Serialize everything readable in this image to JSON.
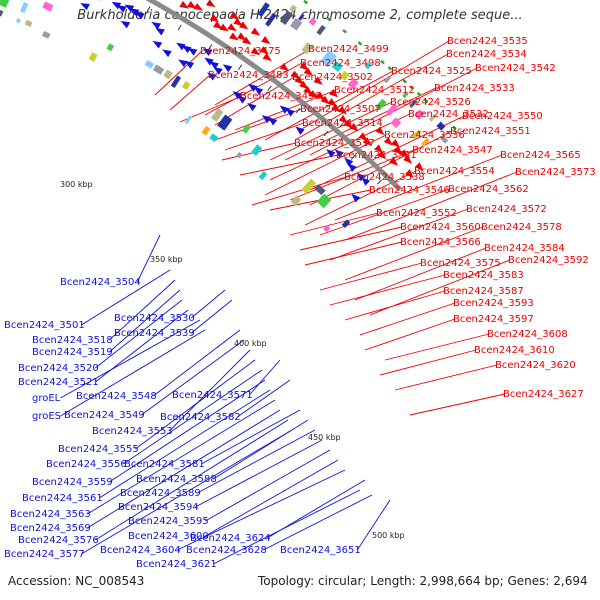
{
  "title": "Burkholderia cenocepacia HI2424 chromosome 2, complete seque...",
  "accession": "Accession: NC_008543",
  "summary": "Topology: circular; Length: 2,998,664 bp; Genes: 2,694",
  "colors": {
    "forward": "#ee0000",
    "reverse": "#1111dd",
    "backbone": "#8a8a8a",
    "tick": "#22aa22"
  },
  "scale_labels": [
    "300 kbp",
    "350 kbp",
    "400 kbp",
    "450 kbp",
    "500 kbp"
  ],
  "forward_genes": [
    "Bcen2424_3475",
    "Bcen2424_3483",
    "Bcen2424_3496",
    "Bcen2424_3498",
    "Bcen2424_3499",
    "Bcen2424_3502",
    "Bcen2424_3507",
    "Bcen2424_3512",
    "Bcen2424_3514",
    "Bcen2424_3517",
    "Bcen2424_3525",
    "Bcen2424_3526",
    "Bcen2424_3531",
    "Bcen2424_3532",
    "Bcen2424_3533",
    "Bcen2424_3534",
    "Bcen2424_3535",
    "Bcen2424_3536",
    "Bcen2424_3538",
    "Bcen2424_3542",
    "Bcen2424_3546",
    "Bcen2424_3547",
    "Bcen2424_3550",
    "Bcen2424_3551",
    "Bcen2424_3552",
    "Bcen2424_3554",
    "Bcen2424_3560",
    "Bcen2424_3562",
    "Bcen2424_3565",
    "Bcen2424_3566",
    "Bcen2424_3572",
    "Bcen2424_3573",
    "Bcen2424_3575",
    "Bcen2424_3578",
    "Bcen2424_3583",
    "Bcen2424_3584",
    "Bcen2424_3587",
    "Bcen2424_3592",
    "Bcen2424_3593",
    "Bcen2424_3597",
    "Bcen2424_3608",
    "Bcen2424_3610",
    "Bcen2424_3620",
    "Bcen2424_3627"
  ],
  "reverse_genes": [
    "Bcen2424_3501",
    "Bcen2424_3504",
    "Bcen2424_3518",
    "Bcen2424_3519",
    "Bcen2424_3520",
    "Bcen2424_3521",
    "Bcen2424_3530",
    "Bcen2424_3539",
    "groEL",
    "groES",
    "Bcen2424_3548",
    "Bcen2424_3549",
    "Bcen2424_3553",
    "Bcen2424_3555",
    "Bcen2424_3556",
    "Bcen2424_3559",
    "Bcen2424_3561",
    "Bcen2424_3563",
    "Bcen2424_3569",
    "Bcen2424_3571",
    "Bcen2424_3576",
    "Bcen2424_3577",
    "Bcen2424_3581",
    "Bcen2424_3582",
    "Bcen2424_3588",
    "Bcen2424_3589",
    "Bcen2424_3594",
    "Bcen2424_3595",
    "Bcen2424_3600",
    "Bcen2424_3604",
    "Bcen2424_3621",
    "Bcen2424_3624",
    "Bcen2424_3628",
    "Bcen2424_3651"
  ]
}
